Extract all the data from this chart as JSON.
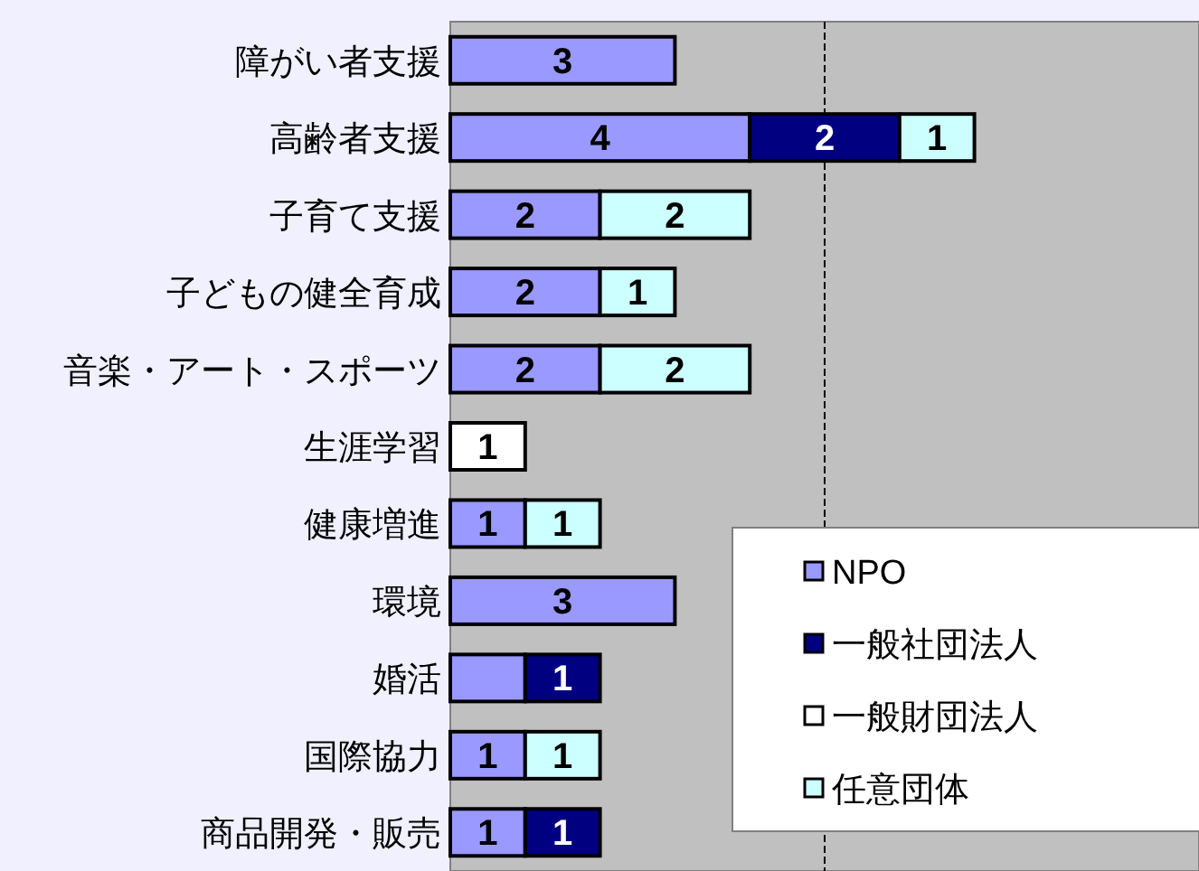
{
  "chart_data": {
    "type": "bar",
    "orientation": "horizontal",
    "stacked": true,
    "categories": [
      "障がい者支援",
      "高齢者支援",
      "子育て支援",
      "子どもの健全育成",
      "音楽・アート・スポーツ",
      "生涯学習",
      "健康増進",
      "環境",
      "婚活",
      "国際協力",
      "商品開発・販売"
    ],
    "series": [
      {
        "name": "NPO",
        "color": "#9999ff",
        "values": [
          3,
          4,
          2,
          2,
          2,
          null,
          1,
          3,
          1,
          1,
          1
        ],
        "value_labels": [
          "3",
          "4",
          "2",
          "2",
          "2",
          null,
          "1",
          "3",
          null,
          "1",
          "1"
        ]
      },
      {
        "name": "一般社団法人",
        "color": "#000080",
        "values": [
          null,
          2,
          null,
          null,
          null,
          null,
          null,
          null,
          1,
          null,
          1
        ],
        "value_labels": [
          null,
          "2",
          null,
          null,
          null,
          null,
          null,
          null,
          "1",
          null,
          "1"
        ]
      },
      {
        "name": "一般財団法人",
        "color": "#ffffff",
        "values": [
          null,
          null,
          null,
          null,
          null,
          1,
          null,
          null,
          null,
          null,
          null
        ],
        "value_labels": [
          null,
          null,
          null,
          null,
          null,
          "1",
          null,
          null,
          null,
          null,
          null
        ]
      },
      {
        "name": "任意団体",
        "color": "#ccffff",
        "values": [
          null,
          1,
          2,
          1,
          2,
          null,
          1,
          null,
          null,
          1,
          null
        ],
        "value_labels": [
          null,
          "1",
          "2",
          "1",
          "2",
          null,
          "1",
          null,
          null,
          "1",
          null
        ]
      }
    ],
    "xlim": [
      0,
      10
    ],
    "ref_lines": [
      {
        "axis": "x",
        "value": 5,
        "line_style": "dashed",
        "color": "#000000"
      }
    ],
    "tick_labels": "y",
    "legend": "bottom right"
  }
}
